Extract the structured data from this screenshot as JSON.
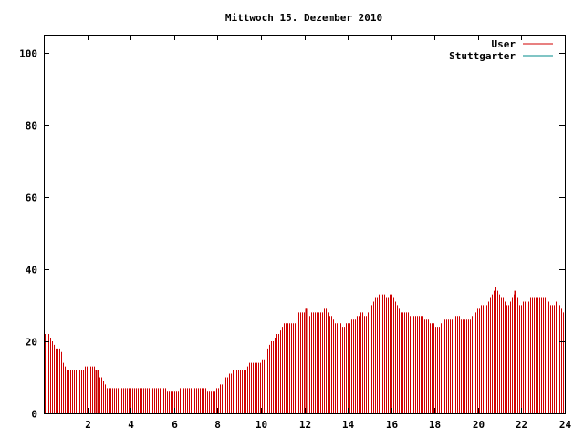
{
  "chart_data": {
    "type": "bar",
    "title": "Mittwoch 15. Dezember 2010",
    "xlabel": "",
    "ylabel": "",
    "xlim": [
      0,
      24
    ],
    "ylim": [
      0,
      105
    ],
    "grid": false,
    "legend_position": "top-right",
    "x_ticks": [
      {
        "value": 2,
        "label": "2"
      },
      {
        "value": 4,
        "label": "4"
      },
      {
        "value": 6,
        "label": "6"
      },
      {
        "value": 8,
        "label": "8"
      },
      {
        "value": 10,
        "label": "10"
      },
      {
        "value": 12,
        "label": "12"
      },
      {
        "value": 14,
        "label": "14"
      },
      {
        "value": 16,
        "label": "16"
      },
      {
        "value": 18,
        "label": "18"
      },
      {
        "value": 20,
        "label": "20"
      },
      {
        "value": 22,
        "label": "22"
      },
      {
        "value": 24,
        "label": "24"
      }
    ],
    "y_ticks": [
      {
        "value": 0,
        "label": "0"
      },
      {
        "value": 20,
        "label": "20"
      },
      {
        "value": 40,
        "label": "40"
      },
      {
        "value": 60,
        "label": "60"
      },
      {
        "value": 80,
        "label": "80"
      },
      {
        "value": 100,
        "label": "100"
      }
    ],
    "series": [
      {
        "name": "User",
        "color": "#d00000",
        "anchors": [
          [
            0.0,
            22
          ],
          [
            0.25,
            22
          ],
          [
            0.4,
            20
          ],
          [
            0.5,
            18
          ],
          [
            0.75,
            18
          ],
          [
            0.85,
            15
          ],
          [
            1.0,
            12
          ],
          [
            1.75,
            12
          ],
          [
            1.95,
            13
          ],
          [
            2.3,
            13
          ],
          [
            2.45,
            12
          ],
          [
            2.6,
            10
          ],
          [
            2.8,
            8
          ],
          [
            3.0,
            7
          ],
          [
            5.5,
            7
          ],
          [
            5.75,
            6
          ],
          [
            6.1,
            6
          ],
          [
            6.3,
            7
          ],
          [
            7.4,
            7
          ],
          [
            7.55,
            6
          ],
          [
            7.8,
            6
          ],
          [
            8.0,
            7
          ],
          [
            8.2,
            8
          ],
          [
            8.5,
            11
          ],
          [
            8.8,
            12
          ],
          [
            9.3,
            12
          ],
          [
            9.5,
            14
          ],
          [
            9.9,
            14
          ],
          [
            10.1,
            15
          ],
          [
            10.3,
            18
          ],
          [
            10.6,
            21
          ],
          [
            10.9,
            23
          ],
          [
            11.1,
            25
          ],
          [
            11.6,
            25
          ],
          [
            11.75,
            28
          ],
          [
            12.0,
            28
          ],
          [
            12.1,
            29
          ],
          [
            12.2,
            27
          ],
          [
            12.4,
            28
          ],
          [
            12.7,
            28
          ],
          [
            13.0,
            29
          ],
          [
            13.2,
            27
          ],
          [
            13.4,
            25
          ],
          [
            13.6,
            25
          ],
          [
            13.8,
            24
          ],
          [
            14.0,
            25
          ],
          [
            14.3,
            26
          ],
          [
            14.6,
            28
          ],
          [
            14.8,
            27
          ],
          [
            15.0,
            29
          ],
          [
            15.2,
            31
          ],
          [
            15.4,
            33
          ],
          [
            15.6,
            33
          ],
          [
            15.8,
            32
          ],
          [
            16.0,
            33
          ],
          [
            16.2,
            31
          ],
          [
            16.35,
            29
          ],
          [
            16.5,
            28
          ],
          [
            16.7,
            28
          ],
          [
            17.0,
            27
          ],
          [
            17.4,
            27
          ],
          [
            17.6,
            26
          ],
          [
            17.9,
            25
          ],
          [
            18.1,
            24
          ],
          [
            18.3,
            25
          ],
          [
            18.5,
            26
          ],
          [
            18.8,
            26
          ],
          [
            19.0,
            27
          ],
          [
            19.3,
            26
          ],
          [
            19.6,
            26
          ],
          [
            19.9,
            28
          ],
          [
            20.1,
            30
          ],
          [
            20.4,
            30
          ],
          [
            20.6,
            33
          ],
          [
            20.8,
            35
          ],
          [
            21.0,
            33
          ],
          [
            21.2,
            31
          ],
          [
            21.4,
            30
          ],
          [
            21.6,
            32
          ],
          [
            21.75,
            34
          ],
          [
            21.9,
            30
          ],
          [
            22.2,
            31
          ],
          [
            22.5,
            32
          ],
          [
            23.0,
            32
          ],
          [
            23.2,
            31
          ],
          [
            23.45,
            30
          ],
          [
            23.6,
            31
          ],
          [
            23.8,
            30
          ],
          [
            23.9,
            28
          ],
          [
            24.0,
            26
          ]
        ],
        "emphasized": [
          {
            "x": 2.4,
            "value": 12
          },
          {
            "x": 7.3,
            "value": 6
          },
          {
            "x": 12.05,
            "value": 29
          },
          {
            "x": 21.7,
            "value": 34
          }
        ]
      },
      {
        "name": "Stuttgarter",
        "color": "#008b8b",
        "anchors": []
      }
    ]
  }
}
